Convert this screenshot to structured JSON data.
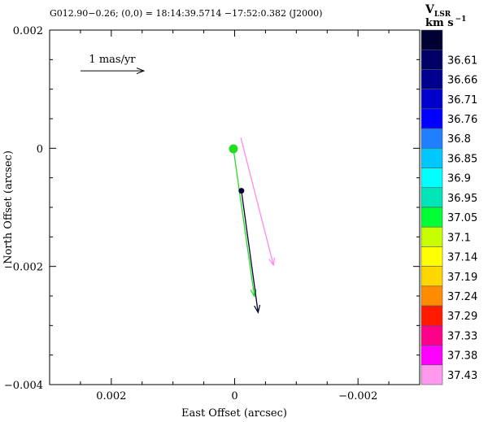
{
  "header": {
    "title": "G012.90−0.26;   (0,0) = 18:14:39.5714      −17:52:0.382 (J2000)"
  },
  "colorbar": {
    "title_main": "V",
    "title_sub": "LSR",
    "units_main": "km s",
    "units_sup": "−1",
    "entries": [
      {
        "label": "",
        "color": "#000033"
      },
      {
        "label": "36.61",
        "color": "#000066"
      },
      {
        "label": "36.66",
        "color": "#00008f"
      },
      {
        "label": "36.71",
        "color": "#0000cc"
      },
      {
        "label": "36.76",
        "color": "#0000ff"
      },
      {
        "label": "36.8",
        "color": "#1f7fff"
      },
      {
        "label": "36.85",
        "color": "#00c8ff"
      },
      {
        "label": "36.9",
        "color": "#00ffff"
      },
      {
        "label": "36.95",
        "color": "#00e6b8"
      },
      {
        "label": "37.05",
        "color": "#00ff33"
      },
      {
        "label": "37.1",
        "color": "#c8ff00"
      },
      {
        "label": "37.14",
        "color": "#ffff00"
      },
      {
        "label": "37.19",
        "color": "#ffd700"
      },
      {
        "label": "37.24",
        "color": "#ff8c00"
      },
      {
        "label": "37.29",
        "color": "#ff1a00"
      },
      {
        "label": "37.33",
        "color": "#ff0088"
      },
      {
        "label": "37.38",
        "color": "#ff00ff"
      },
      {
        "label": "37.43",
        "color": "#ff99ee"
      }
    ]
  },
  "chart_data": {
    "type": "scatter",
    "title": "G012.90−0.26;   (0,0) = 18:14:39.5714      −17:52:0.382 (J2000)",
    "xlabel": "East Offset (arcsec)",
    "ylabel": "North Offset (arcsec)",
    "xlim": [
      0.003,
      -0.003
    ],
    "ylim": [
      -0.004,
      0.002
    ],
    "x_ticks": [
      {
        "value": 0.002,
        "label": "0.002"
      },
      {
        "value": 0,
        "label": "0"
      },
      {
        "value": -0.002,
        "label": "−0.002"
      }
    ],
    "y_ticks": [
      {
        "value": 0.002,
        "label": "0.002"
      },
      {
        "value": 0,
        "label": "0"
      },
      {
        "value": -0.002,
        "label": "−0.002"
      },
      {
        "value": -0.004,
        "label": "−0.004"
      }
    ],
    "scale_bar": {
      "label": "1 mas/yr",
      "x_start": 0.0025,
      "x_end": 0.00147,
      "y": 0.00131
    },
    "points": [
      {
        "x": 2e-05,
        "y": -1e-05,
        "radius": 5.5,
        "color": "#22dd22"
      },
      {
        "x": -0.00011,
        "y": -0.00072,
        "radius": 3.5,
        "color": "#000033"
      }
    ],
    "vectors": [
      {
        "x0": 2e-05,
        "y0": -1e-05,
        "x1": -0.00032,
        "y1": -0.00251,
        "color": "#22dd22"
      },
      {
        "x0": -0.00011,
        "y0": -0.00072,
        "x1": -0.00038,
        "y1": -0.00278,
        "color": "#000033"
      },
      {
        "x0": -0.0001,
        "y0": 0.00018,
        "x1": -0.00063,
        "y1": -0.00198,
        "color": "#ff88ee"
      }
    ],
    "grid": false,
    "legend": "colorbar-right"
  }
}
